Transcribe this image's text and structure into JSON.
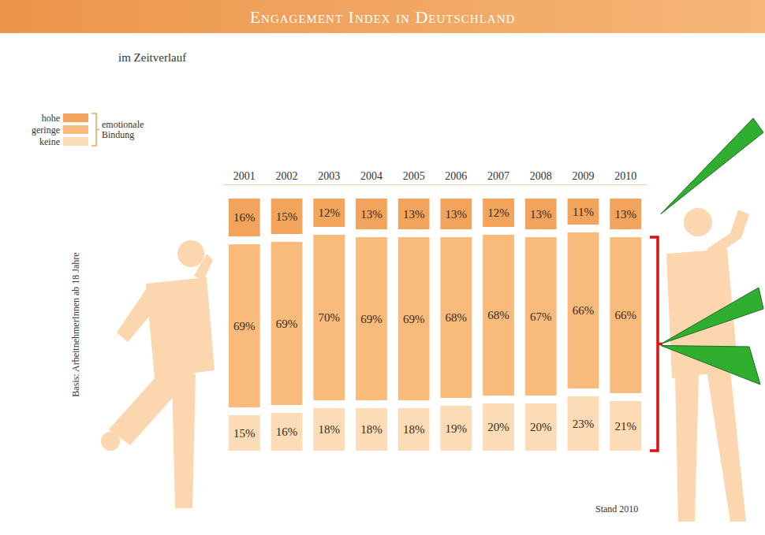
{
  "chart_data": {
    "type": "bar",
    "title": "Engagement Index in Deutschland",
    "subtitle": "im Zeitverlauf",
    "ylabel": "Basis: ArbeitnehmerInnen ab 18 Jahre",
    "annotations": [
      "Stand 2010"
    ],
    "legend_title": "emotionale Bindung",
    "categories": [
      "2001",
      "2002",
      "2003",
      "2004",
      "2005",
      "2006",
      "2007",
      "2008",
      "2009",
      "2010"
    ],
    "series": [
      {
        "name": "hohe",
        "color": "#f2a35c",
        "values": [
          16,
          15,
          12,
          13,
          13,
          13,
          12,
          13,
          11,
          13
        ],
        "value_labels": [
          "16%",
          "15%",
          "12%",
          "13%",
          "13%",
          "13%",
          "12%",
          "13%",
          "11%",
          "13%"
        ]
      },
      {
        "name": "geringe",
        "color": "#f8bb7c",
        "values": [
          69,
          69,
          70,
          69,
          69,
          68,
          68,
          67,
          66,
          66
        ],
        "value_labels": [
          "69%",
          "69%",
          "70%",
          "69%",
          "69%",
          "68%",
          "68%",
          "67%",
          "66%",
          "66%"
        ]
      },
      {
        "name": "keine",
        "color": "#fcdcb6",
        "values": [
          15,
          16,
          18,
          18,
          18,
          19,
          20,
          20,
          23,
          21
        ],
        "value_labels": [
          "15%",
          "16%",
          "18%",
          "18%",
          "18%",
          "19%",
          "20%",
          "20%",
          "23%",
          "21%"
        ]
      }
    ],
    "stacked": true,
    "data_labels": true,
    "tick_labels": "x",
    "legend": "top-left"
  }
}
